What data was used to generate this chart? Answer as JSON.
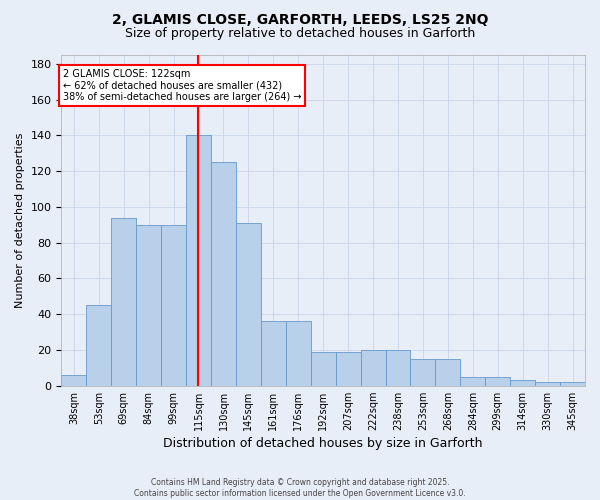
{
  "title_line1": "2, GLAMIS CLOSE, GARFORTH, LEEDS, LS25 2NQ",
  "title_line2": "Size of property relative to detached houses in Garforth",
  "xlabel": "Distribution of detached houses by size in Garforth",
  "ylabel": "Number of detached properties",
  "categories": [
    "38sqm",
    "53sqm",
    "69sqm",
    "84sqm",
    "99sqm",
    "115sqm",
    "130sqm",
    "145sqm",
    "161sqm",
    "176sqm",
    "192sqm",
    "207sqm",
    "222sqm",
    "238sqm",
    "253sqm",
    "268sqm",
    "284sqm",
    "299sqm",
    "314sqm",
    "330sqm",
    "345sqm"
  ],
  "bar_values": [
    6,
    45,
    94,
    90,
    90,
    140,
    125,
    91,
    36,
    36,
    19,
    19,
    20,
    20,
    15,
    15,
    5,
    5,
    3,
    2,
    2
  ],
  "bar_color": "#b8d0ea",
  "bar_edge_color": "#6699cc",
  "grid_color": "#c8d4e8",
  "vline_x": 4,
  "vline_color": "red",
  "annotation_text": "2 GLAMIS CLOSE: 122sqm\n← 62% of detached houses are smaller (432)\n38% of semi-detached houses are larger (264) →",
  "annotation_box_color": "white",
  "annotation_box_edge": "red",
  "ylim": [
    0,
    185
  ],
  "yticks": [
    0,
    20,
    40,
    60,
    80,
    100,
    120,
    140,
    160,
    180
  ],
  "footnote": "Contains HM Land Registry data © Crown copyright and database right 2025.\nContains public sector information licensed under the Open Government Licence v3.0.",
  "background_color": "#e8eef7"
}
